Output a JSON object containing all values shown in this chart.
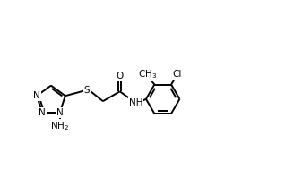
{
  "bg_color": "#ffffff",
  "line_color": "#000000",
  "line_width": 1.4,
  "font_size": 7.5,
  "fig_width": 3.18,
  "fig_height": 2.08,
  "dpi": 100,
  "xlim": [
    0.0,
    9.5
  ],
  "ylim": [
    2.0,
    6.2
  ]
}
